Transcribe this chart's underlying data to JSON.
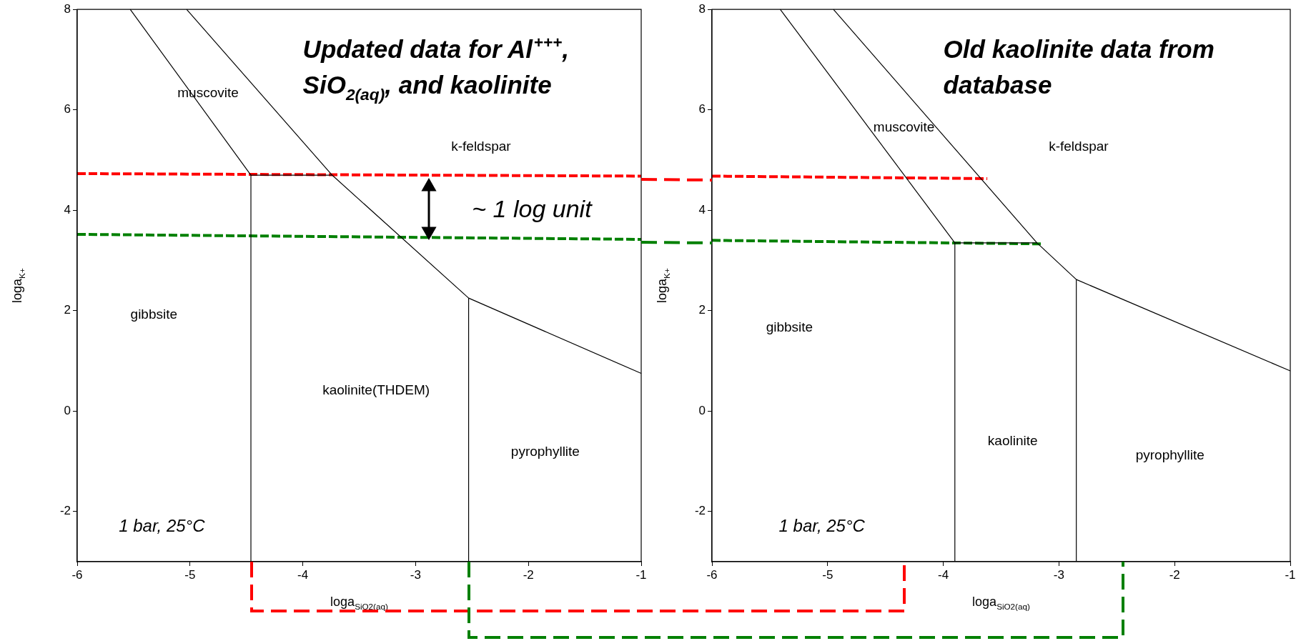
{
  "chart_data": [
    {
      "type": "line",
      "title": "Updated data for Al$^{+++}$, SiO$_{2(aq)}$, and kaolinite",
      "xlabel": "loga$_{SiO2(aq)}$",
      "ylabel": "loga$_{K+}$",
      "xlim": [
        -6,
        -1
      ],
      "ylim": [
        -3,
        8
      ],
      "xticks": [
        -6,
        -5,
        -4,
        -3,
        -2,
        -1
      ],
      "yticks": [
        -2,
        0,
        2,
        4,
        6,
        8
      ],
      "grid": false,
      "legend": false,
      "series": [
        {
          "color": "#000000",
          "x": [
            -4.46,
            -4.46
          ],
          "values": [
            -3,
            4.7
          ]
        },
        {
          "color": "#000000",
          "x": [
            -2.53,
            -2.53
          ],
          "values": [
            -3,
            2.25
          ]
        },
        {
          "color": "#000000",
          "x": [
            -5.53,
            -4.46
          ],
          "values": [
            8,
            4.7
          ]
        },
        {
          "color": "#000000",
          "x": [
            -4.46,
            -3.74
          ],
          "values": [
            4.7,
            4.7
          ]
        },
        {
          "color": "#000000",
          "x": [
            -5.03,
            -3.74,
            -2.53,
            -1
          ],
          "values": [
            8,
            4.7,
            2.25,
            0.75
          ]
        },
        {
          "color": "#ff0000",
          "line_style": "dashed",
          "x": [
            -6,
            -1
          ],
          "values": [
            4.73,
            4.68
          ]
        },
        {
          "color": "#008000",
          "line_style": "dashed",
          "x": [
            -6,
            -1
          ],
          "values": [
            3.52,
            3.42
          ]
        }
      ],
      "annotations": [
        "muscovite",
        "k-feldspar",
        "gibbsite",
        "kaolinite(THDEM)",
        "pyrophyllite",
        "1 bar, 25°C",
        "~ 1 log unit"
      ]
    },
    {
      "type": "line",
      "title": "Old kaolinite data from database",
      "xlabel": "loga$_{SiO2(aq)}$",
      "ylabel": "loga$_{K+}$",
      "xlim": [
        -6,
        -1
      ],
      "ylim": [
        -3,
        8
      ],
      "xticks": [
        -6,
        -5,
        -4,
        -3,
        -2,
        -1
      ],
      "yticks": [
        -2,
        0,
        2,
        4,
        6,
        8
      ],
      "grid": false,
      "legend": false,
      "series": [
        {
          "color": "#000000",
          "x": [
            -3.9,
            -3.9
          ],
          "values": [
            -3,
            3.35
          ]
        },
        {
          "color": "#000000",
          "x": [
            -2.85,
            -2.85
          ],
          "values": [
            -3,
            2.62
          ]
        },
        {
          "color": "#000000",
          "x": [
            -5.41,
            -3.9
          ],
          "values": [
            8,
            3.35
          ]
        },
        {
          "color": "#000000",
          "x": [
            -3.9,
            -3.19
          ],
          "values": [
            3.35,
            3.35
          ]
        },
        {
          "color": "#000000",
          "x": [
            -4.95,
            -3.19,
            -2.85,
            -1
          ],
          "values": [
            8,
            3.35,
            2.62,
            0.8
          ]
        },
        {
          "color": "#ff0000",
          "line_style": "dashed",
          "x": [
            -6,
            -3.62
          ],
          "values": [
            4.68,
            4.63
          ]
        },
        {
          "color": "#008000",
          "line_style": "dashed",
          "x": [
            -6,
            -3.15
          ],
          "values": [
            3.4,
            3.33
          ]
        }
      ],
      "annotations": [
        "muscovite",
        "k-feldspar",
        "gibbsite",
        "kaolinite",
        "pyrophyllite",
        "1 bar, 25°C"
      ]
    }
  ]
}
